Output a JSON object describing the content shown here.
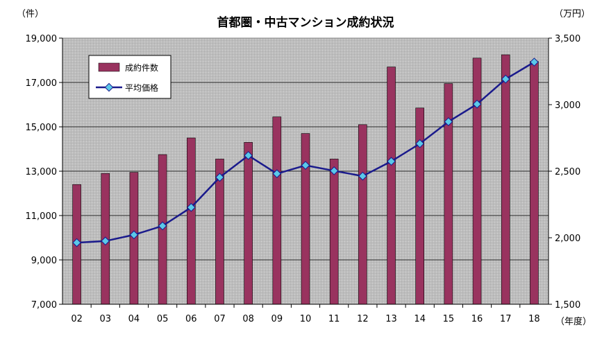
{
  "chart_data": {
    "type": "bar+line",
    "title": "首都圏・中古マンション成約状況",
    "left_axis_unit": "（件）",
    "right_axis_unit": "（万円）",
    "x_axis_unit": "（年度）",
    "categories": [
      "02",
      "03",
      "04",
      "05",
      "06",
      "07",
      "08",
      "09",
      "10",
      "11",
      "12",
      "13",
      "14",
      "15",
      "16",
      "17",
      "18"
    ],
    "series": [
      {
        "name": "成約件数",
        "type": "bar",
        "axis": "left",
        "color": "#99335f",
        "values": [
          12400,
          12900,
          12950,
          13750,
          14500,
          13550,
          14300,
          15450,
          14700,
          13550,
          15100,
          17700,
          15850,
          16950,
          18100,
          18250,
          17950
        ]
      },
      {
        "name": "平均価格",
        "type": "line",
        "axis": "right",
        "color": "#1a1a8c",
        "marker_color": "#5bc8e8",
        "values": [
          1963,
          1975,
          2022,
          2089,
          2228,
          2454,
          2618,
          2481,
          2544,
          2503,
          2463,
          2574,
          2707,
          2872,
          3004,
          3192,
          3320
        ]
      }
    ],
    "left_axis": {
      "min": 7000,
      "max": 19000,
      "ticks": [
        "7,000",
        "9,000",
        "11,000",
        "13,000",
        "15,000",
        "17,000",
        "19,000"
      ]
    },
    "right_axis": {
      "min": 1500,
      "max": 3500,
      "ticks": [
        "1,500",
        "2,000",
        "2,500",
        "3,000",
        "3,500"
      ]
    },
    "grid": true,
    "legend_placement": "top-left",
    "plot_background": "#c0c0c0"
  }
}
